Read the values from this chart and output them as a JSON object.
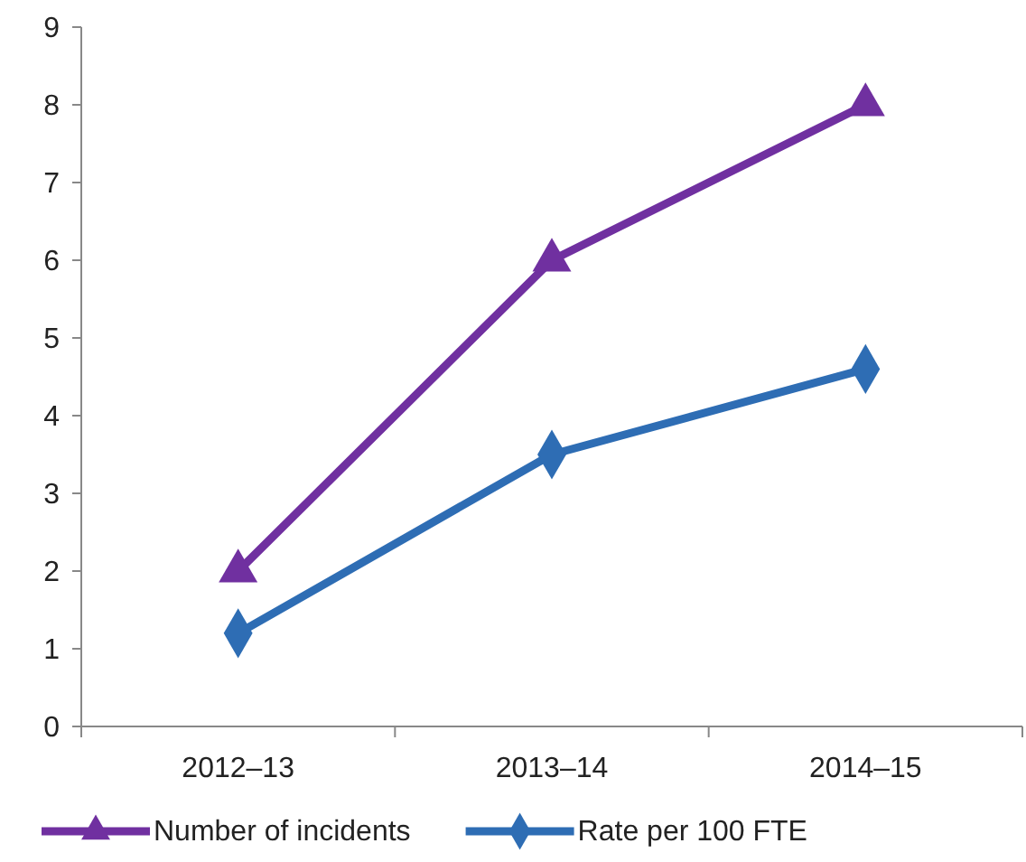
{
  "chart_data": {
    "type": "line",
    "categories": [
      "2012–13",
      "2013–14",
      "2014–15"
    ],
    "series": [
      {
        "name": "Number of incidents",
        "color": "#7030a0",
        "marker": "triangle",
        "values": [
          2,
          6,
          8
        ]
      },
      {
        "name": "Rate per 100 FTE",
        "color": "#2e6db4",
        "marker": "diamond",
        "values": [
          1.2,
          3.5,
          4.6
        ]
      }
    ],
    "ylim": [
      0,
      9
    ],
    "yticks": [
      0,
      1,
      2,
      3,
      4,
      5,
      6,
      7,
      8,
      9
    ],
    "grid": false,
    "legend": "bottom"
  }
}
